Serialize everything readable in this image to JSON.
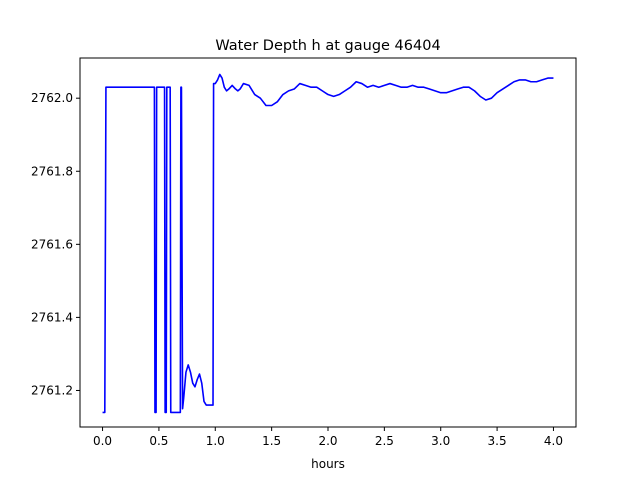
{
  "chart_data": {
    "type": "line",
    "title": "Water Depth h at gauge 46404",
    "xlabel": "hours",
    "ylabel": "",
    "xlim": [
      -0.2,
      4.2
    ],
    "ylim": [
      2761.1,
      2762.11
    ],
    "xticks": [
      0.0,
      0.5,
      1.0,
      1.5,
      2.0,
      2.5,
      3.0,
      3.5,
      4.0
    ],
    "xtick_labels": [
      "0.0",
      "0.5",
      "1.0",
      "1.5",
      "2.0",
      "2.5",
      "3.0",
      "3.5",
      "4.0"
    ],
    "yticks": [
      2761.2,
      2761.4,
      2761.6,
      2761.8,
      2762.0
    ],
    "ytick_labels": [
      "2761.2",
      "2761.4",
      "2761.6",
      "2761.8",
      "2762.0"
    ],
    "grid": false,
    "series": [
      {
        "color": "#0000ff",
        "x": [
          0.0,
          0.02,
          0.03,
          0.1,
          0.2,
          0.3,
          0.4,
          0.46,
          0.465,
          0.475,
          0.48,
          0.49,
          0.5,
          0.55,
          0.555,
          0.565,
          0.57,
          0.58,
          0.6,
          0.605,
          0.615,
          0.62,
          0.63,
          0.69,
          0.695,
          0.7,
          0.71,
          0.72,
          0.74,
          0.76,
          0.78,
          0.8,
          0.82,
          0.84,
          0.86,
          0.88,
          0.9,
          0.92,
          0.94,
          0.97,
          0.98,
          0.985,
          1.0,
          1.02,
          1.04,
          1.06,
          1.08,
          1.1,
          1.12,
          1.15,
          1.18,
          1.2,
          1.22,
          1.25,
          1.3,
          1.35,
          1.4,
          1.45,
          1.5,
          1.55,
          1.6,
          1.65,
          1.7,
          1.75,
          1.8,
          1.85,
          1.9,
          1.95,
          2.0,
          2.05,
          2.1,
          2.15,
          2.2,
          2.25,
          2.3,
          2.35,
          2.4,
          2.45,
          2.5,
          2.55,
          2.6,
          2.65,
          2.7,
          2.75,
          2.8,
          2.85,
          2.9,
          2.95,
          3.0,
          3.05,
          3.1,
          3.15,
          3.2,
          3.25,
          3.3,
          3.35,
          3.4,
          3.45,
          3.5,
          3.55,
          3.6,
          3.65,
          3.7,
          3.75,
          3.8,
          3.85,
          3.9,
          3.95,
          4.0
        ],
        "y": [
          2761.14,
          2761.14,
          2762.03,
          2762.03,
          2762.03,
          2762.03,
          2762.03,
          2762.03,
          2761.14,
          2761.14,
          2762.03,
          2762.03,
          2762.03,
          2762.03,
          2761.14,
          2761.14,
          2762.03,
          2762.03,
          2762.03,
          2761.14,
          2761.14,
          2761.14,
          2761.14,
          2761.14,
          2762.03,
          2762.03,
          2761.15,
          2761.18,
          2761.25,
          2761.27,
          2761.25,
          2761.22,
          2761.21,
          2761.23,
          2761.245,
          2761.22,
          2761.17,
          2761.16,
          2761.16,
          2761.16,
          2761.16,
          2762.04,
          2762.04,
          2762.05,
          2762.065,
          2762.055,
          2762.03,
          2762.02,
          2762.025,
          2762.035,
          2762.025,
          2762.02,
          2762.025,
          2762.04,
          2762.035,
          2762.01,
          2762.0,
          2761.98,
          2761.98,
          2761.99,
          2762.01,
          2762.02,
          2762.025,
          2762.04,
          2762.035,
          2762.03,
          2762.03,
          2762.02,
          2762.01,
          2762.005,
          2762.01,
          2762.02,
          2762.03,
          2762.045,
          2762.04,
          2762.03,
          2762.035,
          2762.03,
          2762.035,
          2762.04,
          2762.035,
          2762.03,
          2762.03,
          2762.035,
          2762.03,
          2762.03,
          2762.025,
          2762.02,
          2762.015,
          2762.015,
          2762.02,
          2762.025,
          2762.03,
          2762.03,
          2762.02,
          2762.005,
          2761.995,
          2762.0,
          2762.015,
          2762.025,
          2762.035,
          2762.045,
          2762.05,
          2762.05,
          2762.045,
          2762.045,
          2762.05,
          2762.055,
          2762.055
        ]
      }
    ]
  }
}
